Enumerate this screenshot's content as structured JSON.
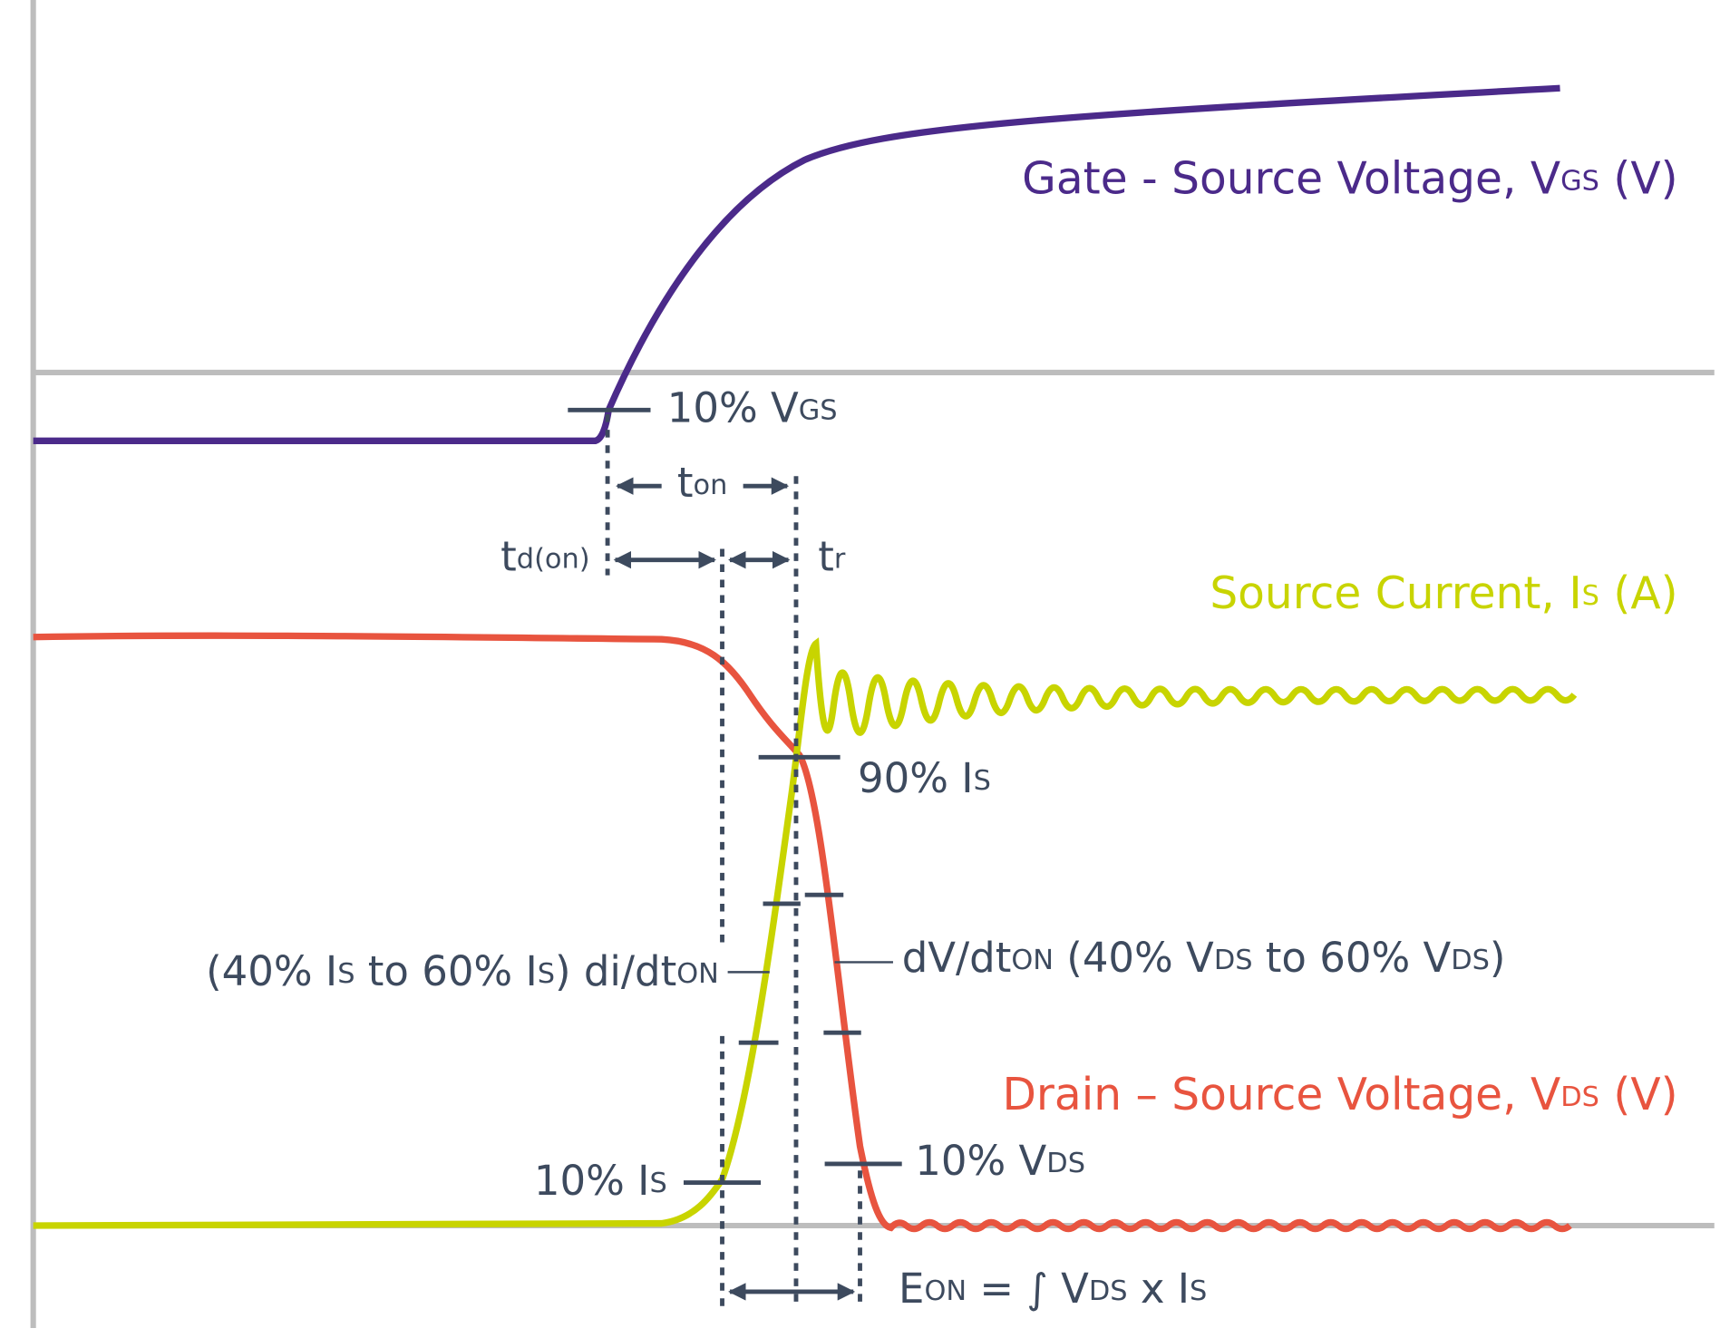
{
  "labels": {
    "gate_voltage": [
      "Gate - Source Voltage, V",
      "GS",
      " (V)"
    ],
    "source_current": [
      "Source Current, I",
      "S",
      " (A)"
    ],
    "drain_voltage": [
      "Drain – Source Voltage, V",
      "DS",
      " (V)"
    ],
    "vgs_10": [
      "10% V",
      "GS"
    ],
    "t_on": [
      "t",
      "on"
    ],
    "t_d_on": [
      "t",
      "d(on)"
    ],
    "t_r": [
      "t",
      "r"
    ],
    "is_90": [
      "90% I",
      "S"
    ],
    "di_dt": [
      "(40% I",
      "S",
      " to 60% I",
      "S",
      ") di/dt",
      "ON"
    ],
    "dv_dt": [
      "dV/dt",
      "ON",
      " (40% V",
      "DS",
      " to 60% V",
      "DS",
      ")"
    ],
    "is_10": [
      "10% I",
      "S"
    ],
    "vds_10": [
      "10% V",
      "DS"
    ],
    "e_on": [
      "E",
      "ON",
      " = ∫  V",
      "DS",
      " x I",
      "S"
    ]
  }
}
